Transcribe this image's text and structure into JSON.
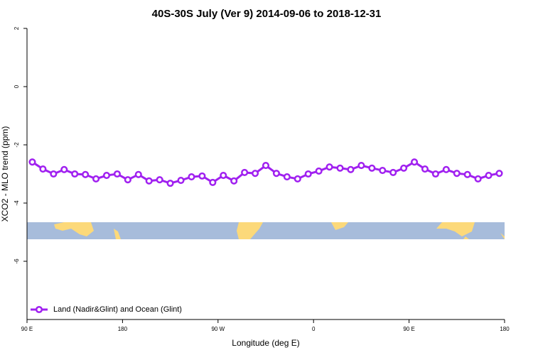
{
  "chart_data": {
    "type": "line",
    "title": "40S-30S July (Ver 9)   2014-09-06 to 2018-12-31",
    "x_label": "Longitude (deg E)",
    "y_label": "XCO2 - MLO trend (ppm)",
    "x": [
      95,
      105,
      115,
      125,
      135,
      145,
      155,
      165,
      175,
      185,
      195,
      205,
      215,
      225,
      235,
      245,
      255,
      265,
      275,
      285,
      295,
      305,
      315,
      325,
      335,
      345,
      355,
      365,
      375,
      385,
      395,
      405,
      415,
      425,
      435,
      445,
      455,
      465,
      475,
      485,
      495,
      505,
      515,
      525,
      535
    ],
    "series": [
      {
        "name": "Land (Nadir&Glint) and Ocean (Glint)",
        "color": "#a020f0",
        "values": [
          -2.59,
          -2.83,
          -3.0,
          -2.85,
          -3.0,
          -3.02,
          -3.17,
          -3.05,
          -3.0,
          -3.2,
          -3.02,
          -3.24,
          -3.2,
          -3.32,
          -3.22,
          -3.1,
          -3.07,
          -3.29,
          -3.05,
          -3.24,
          -2.95,
          -2.98,
          -2.71,
          -2.98,
          -3.1,
          -3.17,
          -3.0,
          -2.9,
          -2.76,
          -2.8,
          -2.85,
          -2.71,
          -2.8,
          -2.88,
          -2.95,
          -2.8,
          -2.59,
          -2.83,
          -3.0,
          -2.85,
          -2.98,
          -3.02,
          -3.17,
          -3.05,
          -2.98
        ]
      }
    ],
    "xlim": [
      90,
      540
    ],
    "xticks": [
      {
        "value": 90,
        "label": "90 E"
      },
      {
        "value": 180,
        "label": "180"
      },
      {
        "value": 270,
        "label": "90 W"
      },
      {
        "value": 360,
        "label": "0"
      },
      {
        "value": 450,
        "label": "90 E"
      },
      {
        "value": 540,
        "label": "180"
      }
    ],
    "ylim": [
      -8,
      2
    ],
    "yticks": [
      -6,
      -4,
      -2,
      0,
      2
    ],
    "legend": "bottom-left"
  }
}
